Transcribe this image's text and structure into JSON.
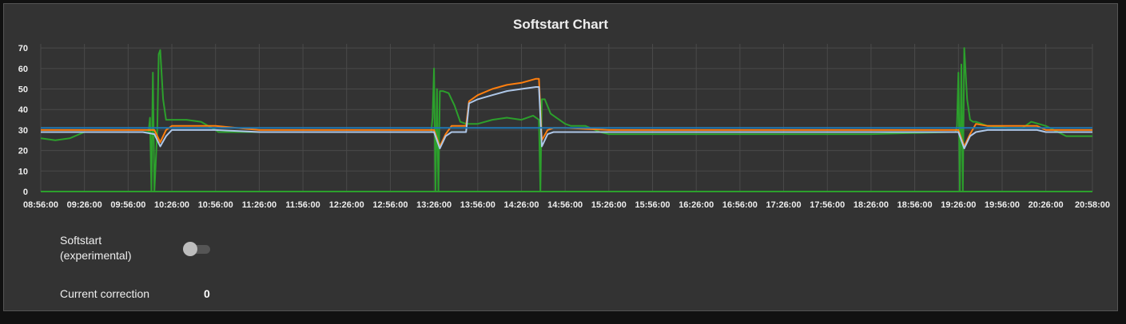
{
  "panel": {
    "softstart_label": "Softstart (experimental)",
    "softstart_enabled": false,
    "correction_label": "Current correction",
    "correction_value": "0"
  },
  "chart_data": {
    "type": "line",
    "title": "Softstart Chart",
    "xlabel": "",
    "ylabel": "",
    "ylim": [
      0,
      72
    ],
    "yticks": [
      0,
      10,
      20,
      30,
      40,
      50,
      60,
      70
    ],
    "grid": true,
    "legend": "none",
    "xlim": [
      "08:56:00",
      "20:58:00"
    ],
    "x_tick_labels": [
      "08:56:00",
      "09:26:00",
      "09:56:00",
      "10:26:00",
      "10:56:00",
      "11:26:00",
      "11:56:00",
      "12:26:00",
      "12:56:00",
      "13:26:00",
      "13:56:00",
      "14:26:00",
      "14:56:00",
      "15:26:00",
      "15:56:00",
      "16:26:00",
      "16:56:00",
      "17:26:00",
      "17:56:00",
      "18:26:00",
      "18:56:00",
      "19:26:00",
      "19:56:00",
      "20:26:00",
      "20:58:00"
    ],
    "series": [
      {
        "color": "#2ca02c",
        "x": [
          "08:56:00",
          "09:06:00",
          "09:16:00",
          "09:26:00",
          "09:36:00",
          "09:46:00",
          "09:56:00",
          "10:06:00",
          "10:10:00",
          "10:11:00",
          "10:12:00",
          "10:13:00",
          "10:14:00",
          "10:16:00",
          "10:17:00",
          "10:18:00",
          "10:20:00",
          "10:22:00",
          "10:24:00",
          "10:26:00",
          "10:32:00",
          "10:36:00",
          "10:46:00",
          "10:56:00",
          "10:58:00",
          "11:26:00",
          "12:26:00",
          "13:20:00",
          "13:24:00",
          "13:25:00",
          "13:26:00",
          "13:27:00",
          "13:28:00",
          "13:29:00",
          "13:30:00",
          "13:32:00",
          "13:36:00",
          "13:40:00",
          "13:44:00",
          "13:48:00",
          "13:56:00",
          "14:06:00",
          "14:16:00",
          "14:26:00",
          "14:34:00",
          "14:38:00",
          "14:39:00",
          "14:40:00",
          "14:42:00",
          "14:46:00",
          "14:56:00",
          "15:00:00",
          "15:10:00",
          "15:20:00",
          "15:26:00",
          "15:30:00",
          "16:26:00",
          "17:26:00",
          "18:26:00",
          "19:20:00",
          "19:24:00",
          "19:25:00",
          "19:26:00",
          "19:27:00",
          "19:28:00",
          "19:29:00",
          "19:30:00",
          "19:32:00",
          "19:34:00",
          "19:36:00",
          "19:38:00",
          "19:46:00",
          "20:00:00",
          "20:10:00",
          "20:16:00",
          "20:26:00",
          "20:40:00",
          "20:56:00",
          "20:58:00"
        ],
        "y": [
          26,
          25,
          26,
          29,
          29,
          29,
          29,
          29,
          29,
          36,
          0,
          58,
          0,
          30,
          67,
          69,
          45,
          35,
          35,
          35,
          35,
          35,
          34,
          30,
          29,
          29,
          29,
          29,
          29,
          36,
          60,
          0,
          50,
          0,
          49,
          49,
          48,
          42,
          34,
          33,
          33,
          35,
          36,
          35,
          37,
          35,
          0,
          45,
          45,
          38,
          33,
          32,
          32,
          29,
          28,
          28,
          28,
          28,
          28,
          29,
          29,
          32,
          58,
          0,
          62,
          0,
          70,
          45,
          35,
          34,
          34,
          32,
          31,
          31,
          34,
          32,
          27,
          27,
          27
        ]
      },
      {
        "color": "#ff7f0e",
        "x": [
          "08:56:00",
          "09:56:00",
          "10:06:00",
          "10:14:00",
          "10:18:00",
          "10:22:00",
          "10:26:00",
          "10:56:00",
          "11:26:00",
          "13:20:00",
          "13:26:00",
          "13:30:00",
          "13:34:00",
          "13:38:00",
          "13:48:00",
          "13:50:00",
          "13:56:00",
          "14:06:00",
          "14:16:00",
          "14:26:00",
          "14:36:00",
          "14:38:00",
          "14:40:00",
          "14:44:00",
          "14:48:00",
          "14:56:00",
          "15:26:00",
          "19:20:00",
          "19:26:00",
          "19:30:00",
          "19:34:00",
          "19:38:00",
          "19:46:00",
          "20:20:00",
          "20:26:00",
          "20:58:00"
        ],
        "y": [
          30,
          30,
          30,
          30,
          24,
          30,
          32,
          32,
          30,
          30,
          30,
          22,
          28,
          32,
          32,
          44,
          47,
          50,
          52,
          53,
          55,
          55,
          25,
          30,
          31,
          31,
          30,
          30,
          30,
          22,
          28,
          33,
          32,
          32,
          30,
          30
        ]
      },
      {
        "color": "#aec7e8",
        "x": [
          "08:56:00",
          "09:56:00",
          "10:06:00",
          "10:14:00",
          "10:18:00",
          "10:22:00",
          "10:26:00",
          "10:56:00",
          "11:26:00",
          "13:20:00",
          "13:26:00",
          "13:30:00",
          "13:34:00",
          "13:38:00",
          "13:48:00",
          "13:50:00",
          "13:56:00",
          "14:06:00",
          "14:16:00",
          "14:26:00",
          "14:36:00",
          "14:38:00",
          "14:40:00",
          "14:44:00",
          "14:48:00",
          "14:56:00",
          "15:26:00",
          "19:20:00",
          "19:26:00",
          "19:30:00",
          "19:34:00",
          "19:38:00",
          "19:46:00",
          "20:20:00",
          "20:26:00",
          "20:58:00"
        ],
        "y": [
          29,
          29,
          29,
          28,
          22,
          27,
          30,
          30,
          29,
          29,
          29,
          21,
          27,
          29,
          29,
          43,
          45,
          47,
          49,
          50,
          51,
          51,
          22,
          28,
          29,
          29,
          29,
          29,
          29,
          21,
          27,
          29,
          30,
          30,
          29,
          29
        ]
      },
      {
        "color": "#1f77b4",
        "x": [
          "08:56:00",
          "20:58:00"
        ],
        "y": [
          31,
          31
        ]
      },
      {
        "color": "#2ca02c",
        "x": [
          "08:56:00",
          "20:58:00"
        ],
        "y": [
          0,
          0
        ]
      }
    ]
  }
}
